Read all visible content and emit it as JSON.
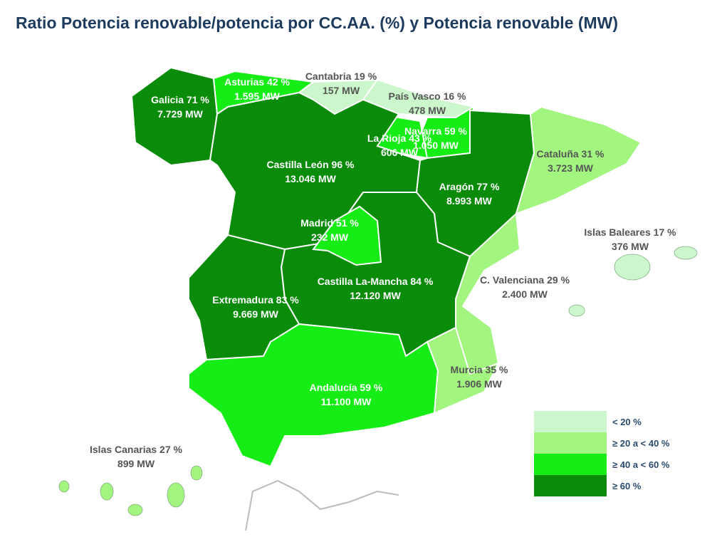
{
  "title": "Ratio Potencia renovable/potencia por CC.AA. (%) y Potencia renovable (MW)",
  "regions": [
    {
      "label": "Galicia 71 %",
      "power": "7.729 MW",
      "color": "#0a8c0a"
    },
    {
      "label": "Asturias 42 %",
      "power": "1.595 MW",
      "color": "#16ec16"
    },
    {
      "label": "Cantabria 19 %",
      "power": "157 MW",
      "color": "#ccf7cc"
    },
    {
      "label": "País Vasco 16 %",
      "power": "478 MW",
      "color": "#ccf7cc"
    },
    {
      "label": "Navarra 59 %",
      "power": "1.050 MW",
      "color": "#16ec16"
    },
    {
      "label": "La Rioja 43 %",
      "power": "606 MW",
      "color": "#16ec16"
    },
    {
      "label": "Castilla León 96 %",
      "power": "13.046 MW",
      "color": "#0a8c0a"
    },
    {
      "label": "Aragón 77 %",
      "power": "8.993 MW",
      "color": "#0a8c0a"
    },
    {
      "label": "Cataluña 31 %",
      "power": "3.723 MW",
      "color": "#a2f57f"
    },
    {
      "label": "Castilla La-Mancha 84 %",
      "power": "12.120 MW",
      "color": "#0a8c0a"
    },
    {
      "label": "Madrid 51 %",
      "power": "232 MW",
      "color": "#16ec16"
    },
    {
      "label": "C. Valenciana 29 %",
      "power": "2.400 MW",
      "color": "#a2f57f"
    },
    {
      "label": "Extremadura 83 %",
      "power": "9.669 MW",
      "color": "#0a8c0a"
    },
    {
      "label": "Andalucía 59 %",
      "power": "11.100 MW",
      "color": "#16ec16"
    },
    {
      "label": "Murcia 35 %",
      "power": "1.906 MW",
      "color": "#a2f57f"
    },
    {
      "label": "Islas Baleares 17 %",
      "power": "376 MW",
      "color": "#ccf7cc"
    },
    {
      "label": "Islas Canarias 27 %",
      "power": "899 MW",
      "color": "#a2f57f"
    }
  ],
  "legend": [
    {
      "label": "<  20 %",
      "color": "#ccf7cc"
    },
    {
      "label": "≥ 20 a < 40 %",
      "color": "#a2f57f"
    },
    {
      "label": "≥ 40 a < 60 %",
      "color": "#16ec16"
    },
    {
      "label": "≥ 60 %",
      "color": "#0a8c0a"
    }
  ]
}
